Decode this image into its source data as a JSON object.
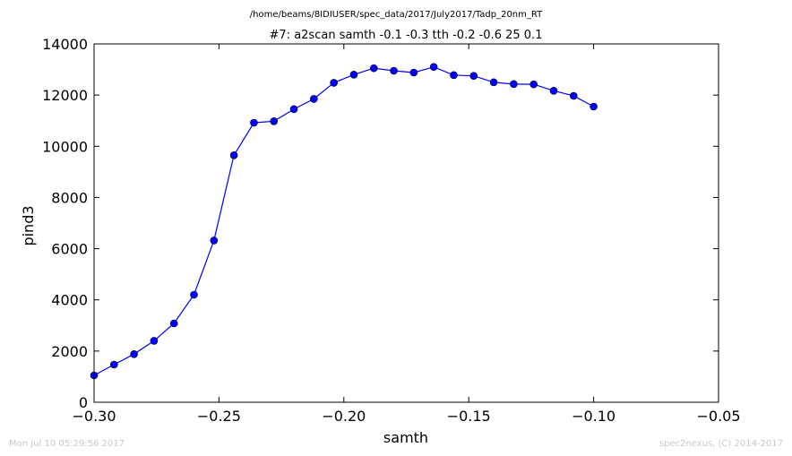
{
  "chart_data": {
    "type": "line",
    "suptitle": "/home/beams/8IDIUSER/spec_data/2017/July2017/Tadp_20nm_RT",
    "title": "#7: a2scan  samth -0.1 -0.3  tth -0.2 -0.6  25 0.1",
    "xlabel": "samth",
    "ylabel": "pind3",
    "xlim": [
      -0.3,
      -0.05
    ],
    "ylim": [
      0,
      14000
    ],
    "xticks": [
      -0.3,
      -0.25,
      -0.2,
      -0.15,
      -0.1,
      -0.05
    ],
    "xtick_labels": [
      "−0.30",
      "−0.25",
      "−0.20",
      "−0.15",
      "−0.10",
      "−0.05"
    ],
    "yticks": [
      0,
      2000,
      4000,
      6000,
      8000,
      10000,
      12000,
      14000
    ],
    "ytick_labels": [
      "0",
      "2000",
      "4000",
      "6000",
      "8000",
      "10000",
      "12000",
      "14000"
    ],
    "grid": false,
    "line_color": "#0000ff",
    "marker_color": "#0000ff",
    "series": [
      {
        "x": [
          -0.3,
          -0.292,
          -0.284,
          -0.276,
          -0.268,
          -0.26,
          -0.252,
          -0.244,
          -0.236,
          -0.228,
          -0.22,
          -0.212,
          -0.204,
          -0.196,
          -0.188,
          -0.18,
          -0.172,
          -0.164,
          -0.156,
          -0.148,
          -0.14,
          -0.132,
          -0.124,
          -0.116,
          -0.108,
          -0.1
        ],
        "y": [
          1050,
          1470,
          1880,
          2400,
          3080,
          4200,
          6320,
          9650,
          10920,
          10980,
          11450,
          11850,
          12480,
          12800,
          13050,
          12950,
          12880,
          13100,
          12780,
          12750,
          12500,
          12430,
          12420,
          12170,
          11970,
          11550
        ]
      }
    ]
  },
  "footer": {
    "timestamp": "Mon Jul 10 05:29:56 2017",
    "credit": "spec2nexus, (C) 2014-2017"
  }
}
